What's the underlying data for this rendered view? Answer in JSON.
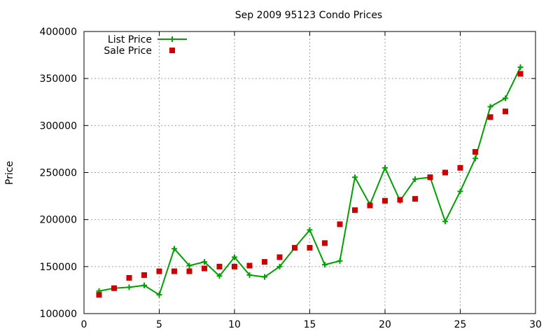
{
  "chart_data": {
    "type": "line",
    "title": "Sep 2009 95123 Condo Prices",
    "xlabel": "",
    "ylabel": "Price",
    "xlim": [
      0,
      30
    ],
    "ylim": [
      100000,
      400000
    ],
    "xticks": [
      0,
      5,
      10,
      15,
      20,
      25,
      30
    ],
    "yticks": [
      100000,
      150000,
      200000,
      250000,
      300000,
      350000,
      400000
    ],
    "grid": true,
    "legend_position": "top-left",
    "x": [
      1,
      2,
      3,
      4,
      5,
      6,
      7,
      8,
      9,
      10,
      11,
      12,
      13,
      14,
      15,
      16,
      17,
      18,
      19,
      20,
      21,
      22,
      23,
      24,
      25,
      26,
      27,
      28,
      29
    ],
    "series": [
      {
        "name": "List Price",
        "style": "line-plus",
        "color": "#00a000",
        "values": [
          124000,
          127000,
          128000,
          130000,
          120000,
          169000,
          151000,
          155000,
          140000,
          160000,
          141000,
          139000,
          150000,
          170000,
          189000,
          152000,
          156000,
          245000,
          216000,
          255000,
          220000,
          243000,
          245000,
          198000,
          230000,
          265000,
          320000,
          329000,
          362000
        ]
      },
      {
        "name": "Sale Price",
        "style": "square-marker",
        "color": "#cc0000",
        "values": [
          120000,
          127000,
          138000,
          141000,
          145000,
          145000,
          145000,
          148000,
          150000,
          150000,
          151000,
          155000,
          160000,
          170000,
          170000,
          175000,
          195000,
          210000,
          215000,
          220000,
          221000,
          222000,
          245000,
          250000,
          255000,
          272000,
          309000,
          315000,
          355000
        ]
      }
    ]
  }
}
